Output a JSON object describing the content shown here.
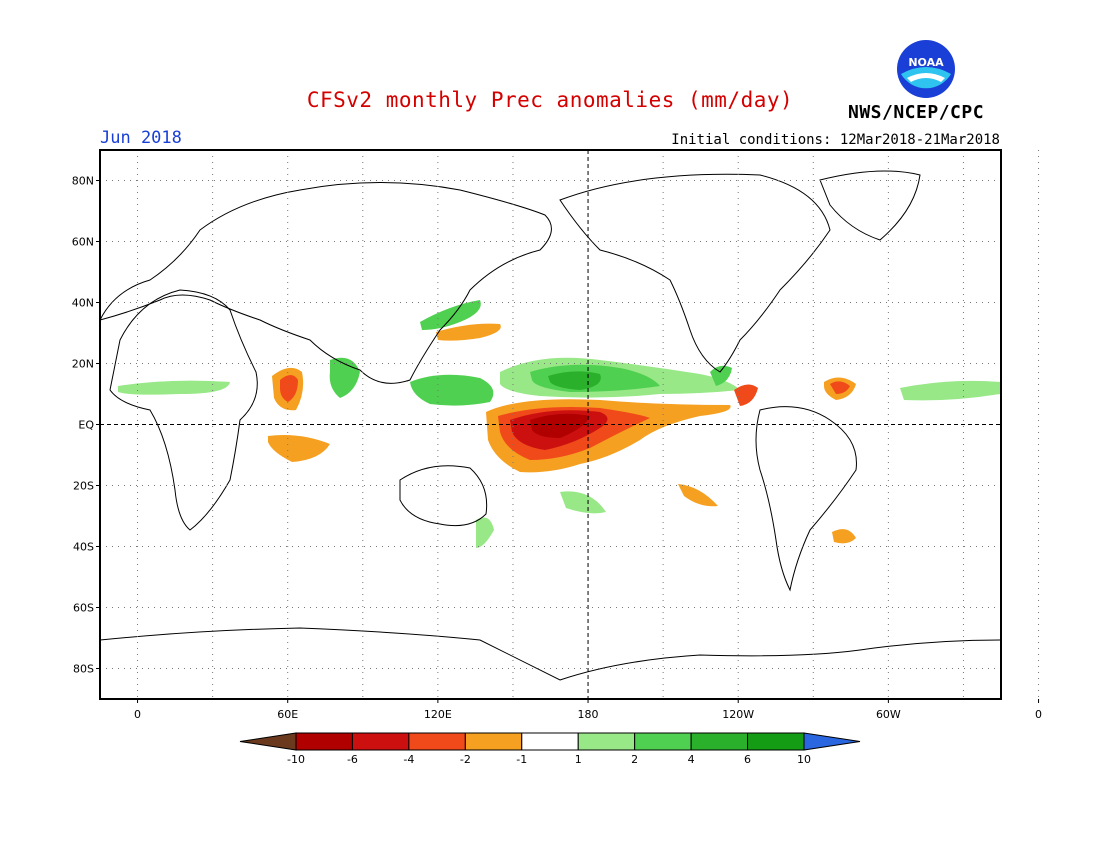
{
  "header": {
    "title": "CFSv2 monthly Prec anomalies (mm/day)",
    "month": "Jun 2018",
    "initial_conditions": "Initial conditions: 12Mar2018-21Mar2018",
    "agency": "NWS/NCEP/CPC",
    "logo_text": "NOAA"
  },
  "map": {
    "projection": "cylindrical equidistant",
    "lat_labels": [
      "80N",
      "60N",
      "40N",
      "20N",
      "EQ",
      "20S",
      "40S",
      "60S",
      "80S"
    ],
    "lon_labels": [
      "0",
      "60E",
      "120E",
      "180",
      "120W",
      "60W",
      "0"
    ],
    "grid": "dotted",
    "highlight_lines": [
      "EQ",
      "180"
    ]
  },
  "colorbar": {
    "boundaries": [
      "-10",
      "-6",
      "-4",
      "-2",
      "-1",
      "1",
      "2",
      "4",
      "6",
      "10"
    ],
    "colors": [
      "#6b3a1e",
      "#b00000",
      "#cc1010",
      "#f04a1a",
      "#f5a020",
      "#ffffff",
      "#98e888",
      "#50d050",
      "#2ab02a",
      "#159c15",
      "#2a66e0"
    ]
  }
}
